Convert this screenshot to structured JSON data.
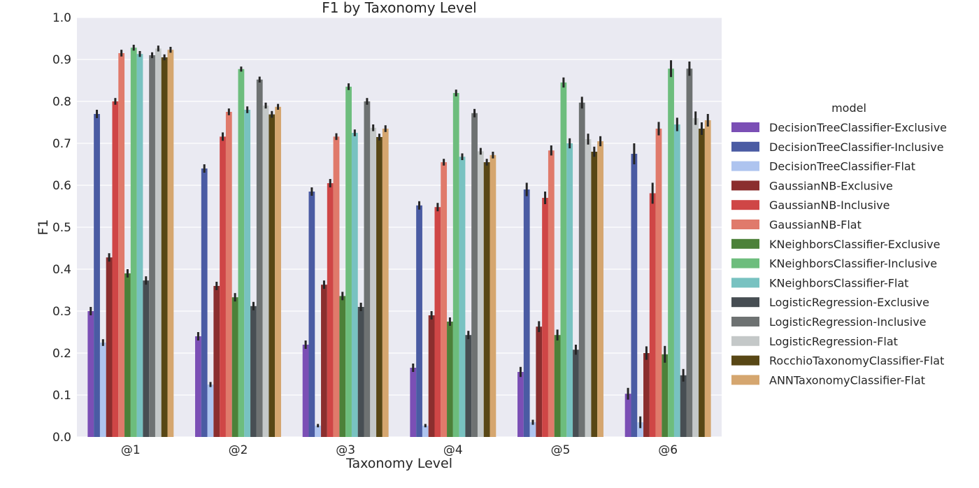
{
  "chart_data": {
    "type": "bar",
    "title": "F1 by Taxonomy Level",
    "xlabel": "Taxonomy Level",
    "ylabel": "F1",
    "ylim": [
      0,
      1.0
    ],
    "yticks": [
      "0.0",
      "0.1",
      "0.2",
      "0.3",
      "0.4",
      "0.5",
      "0.6",
      "0.7",
      "0.8",
      "0.9",
      "1.0"
    ],
    "grid": true,
    "legend_title": "model",
    "legend_position": "right",
    "categories": [
      "@1",
      "@2",
      "@3",
      "@4",
      "@5",
      "@6"
    ],
    "series": [
      {
        "name": "DecisionTreeClassifier-Exclusive",
        "color": "#7B4FB5",
        "values": [
          0.3,
          0.24,
          0.22,
          0.165,
          0.155,
          0.103
        ],
        "err": [
          0.01,
          0.01,
          0.01,
          0.01,
          0.012,
          0.014
        ]
      },
      {
        "name": "DecisionTreeClassifier-Inclusive",
        "color": "#4A5BA3",
        "values": [
          0.77,
          0.64,
          0.585,
          0.552,
          0.59,
          0.675
        ],
        "err": [
          0.01,
          0.01,
          0.01,
          0.01,
          0.016,
          0.025
        ]
      },
      {
        "name": "DecisionTreeClassifier-Flat",
        "color": "#AEC4EF",
        "values": [
          0.225,
          0.125,
          0.027,
          0.027,
          0.035,
          0.035
        ],
        "err": [
          0.008,
          0.006,
          0.004,
          0.004,
          0.006,
          0.014
        ]
      },
      {
        "name": "GaussianNB-Exclusive",
        "color": "#8B2E2E",
        "values": [
          0.428,
          0.36,
          0.363,
          0.29,
          0.263,
          0.2
        ],
        "err": [
          0.01,
          0.01,
          0.01,
          0.01,
          0.013,
          0.016
        ]
      },
      {
        "name": "GaussianNB-Inclusive",
        "color": "#CF4646",
        "values": [
          0.8,
          0.716,
          0.605,
          0.548,
          0.57,
          0.581
        ],
        "err": [
          0.008,
          0.01,
          0.01,
          0.01,
          0.015,
          0.025
        ]
      },
      {
        "name": "GaussianNB-Flat",
        "color": "#E07A6B",
        "values": [
          0.915,
          0.775,
          0.716,
          0.655,
          0.683,
          0.735
        ],
        "err": [
          0.008,
          0.008,
          0.008,
          0.008,
          0.012,
          0.016
        ]
      },
      {
        "name": "KNeighborsClassifier-Exclusive",
        "color": "#4C8139",
        "values": [
          0.39,
          0.333,
          0.336,
          0.275,
          0.243,
          0.197
        ],
        "err": [
          0.01,
          0.01,
          0.01,
          0.01,
          0.013,
          0.02
        ]
      },
      {
        "name": "KNeighborsClassifier-Inclusive",
        "color": "#6DBD7D",
        "values": [
          0.928,
          0.877,
          0.835,
          0.82,
          0.845,
          0.878
        ],
        "err": [
          0.007,
          0.006,
          0.008,
          0.008,
          0.012,
          0.02
        ]
      },
      {
        "name": "KNeighborsClassifier-Flat",
        "color": "#78C2C1",
        "values": [
          0.913,
          0.78,
          0.725,
          0.668,
          0.7,
          0.745
        ],
        "err": [
          0.007,
          0.008,
          0.008,
          0.008,
          0.012,
          0.016
        ]
      },
      {
        "name": "LogisticRegression-Exclusive",
        "color": "#474E53",
        "values": [
          0.373,
          0.312,
          0.31,
          0.243,
          0.208,
          0.147
        ],
        "err": [
          0.01,
          0.01,
          0.01,
          0.01,
          0.012,
          0.015
        ]
      },
      {
        "name": "LogisticRegression-Inclusive",
        "color": "#6E7272",
        "values": [
          0.91,
          0.852,
          0.8,
          0.772,
          0.797,
          0.878
        ],
        "err": [
          0.007,
          0.007,
          0.008,
          0.01,
          0.014,
          0.017
        ]
      },
      {
        "name": "LogisticRegression-Flat",
        "color": "#C4C8C8",
        "values": [
          0.926,
          0.79,
          0.737,
          0.681,
          0.71,
          0.76
        ],
        "err": [
          0.007,
          0.007,
          0.008,
          0.008,
          0.013,
          0.016
        ]
      },
      {
        "name": "RocchioTaxonomyClassifier-Flat",
        "color": "#584715",
        "values": [
          0.905,
          0.769,
          0.715,
          0.655,
          0.68,
          0.735
        ],
        "err": [
          0.007,
          0.008,
          0.008,
          0.008,
          0.012,
          0.015
        ]
      },
      {
        "name": "ANNTaxonomyClassifier-Flat",
        "color": "#D5A66F",
        "values": [
          0.923,
          0.787,
          0.735,
          0.672,
          0.705,
          0.755
        ],
        "err": [
          0.007,
          0.007,
          0.008,
          0.008,
          0.012,
          0.015
        ]
      }
    ]
  }
}
